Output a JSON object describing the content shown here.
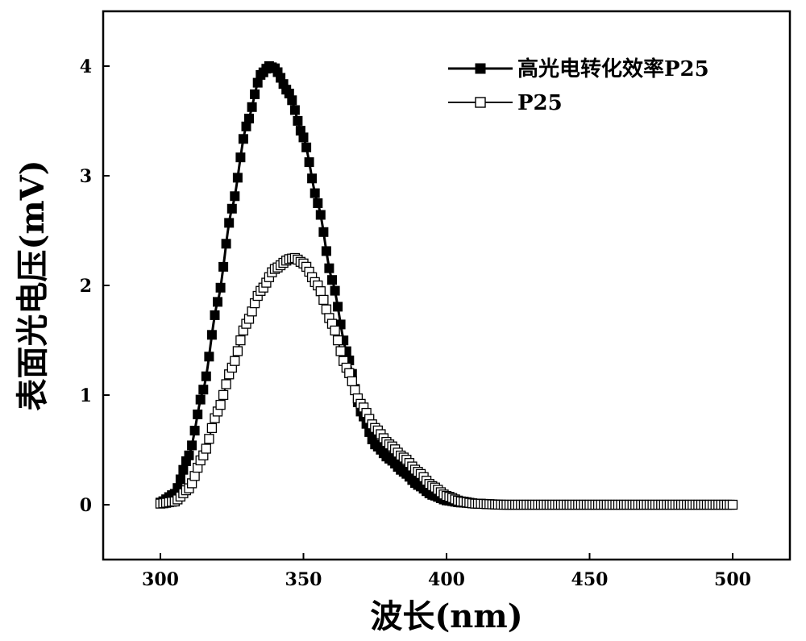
{
  "chart_data": {
    "type": "line",
    "xlabel": "波长(nm)",
    "ylabel": "表面光电压(mV)",
    "xlim": [
      280,
      520
    ],
    "ylim": [
      -0.5,
      4.5
    ],
    "x_ticks": [
      "300",
      "350",
      "400",
      "450",
      "500"
    ],
    "y_ticks": [
      "0",
      "1",
      "2",
      "3",
      "4"
    ],
    "x_tick_values": [
      300,
      350,
      400,
      450,
      500
    ],
    "y_tick_values": [
      0,
      1,
      2,
      3,
      4
    ],
    "grid": false,
    "legend_position": "top-right",
    "series": [
      {
        "name": "高光电转化效率P25",
        "marker": "filled-square",
        "color": "#000000",
        "points": [
          [
            300,
            0.02
          ],
          [
            305,
            0.1
          ],
          [
            310,
            0.45
          ],
          [
            315,
            1.05
          ],
          [
            320,
            1.85
          ],
          [
            325,
            2.7
          ],
          [
            330,
            3.45
          ],
          [
            335,
            3.92
          ],
          [
            338,
            4.0
          ],
          [
            340,
            3.98
          ],
          [
            345,
            3.75
          ],
          [
            350,
            3.35
          ],
          [
            355,
            2.75
          ],
          [
            360,
            2.05
          ],
          [
            365,
            1.4
          ],
          [
            370,
            0.85
          ],
          [
            375,
            0.55
          ],
          [
            380,
            0.42
          ],
          [
            385,
            0.3
          ],
          [
            390,
            0.18
          ],
          [
            395,
            0.09
          ],
          [
            400,
            0.04
          ],
          [
            405,
            0.02
          ],
          [
            410,
            0.01
          ],
          [
            420,
            0.0
          ],
          [
            450,
            0.0
          ],
          [
            500,
            0.0
          ]
        ]
      },
      {
        "name": "P25",
        "marker": "open-square",
        "color": "#000000",
        "points": [
          [
            300,
            0.01
          ],
          [
            305,
            0.03
          ],
          [
            310,
            0.15
          ],
          [
            315,
            0.45
          ],
          [
            320,
            0.85
          ],
          [
            325,
            1.25
          ],
          [
            330,
            1.65
          ],
          [
            335,
            1.95
          ],
          [
            340,
            2.15
          ],
          [
            345,
            2.24
          ],
          [
            347,
            2.25
          ],
          [
            350,
            2.2
          ],
          [
            355,
            2.0
          ],
          [
            360,
            1.65
          ],
          [
            365,
            1.25
          ],
          [
            370,
            0.92
          ],
          [
            375,
            0.7
          ],
          [
            380,
            0.55
          ],
          [
            385,
            0.43
          ],
          [
            390,
            0.3
          ],
          [
            395,
            0.17
          ],
          [
            400,
            0.08
          ],
          [
            405,
            0.03
          ],
          [
            410,
            0.01
          ],
          [
            420,
            0.0
          ],
          [
            450,
            0.0
          ],
          [
            500,
            0.0
          ]
        ]
      }
    ]
  }
}
